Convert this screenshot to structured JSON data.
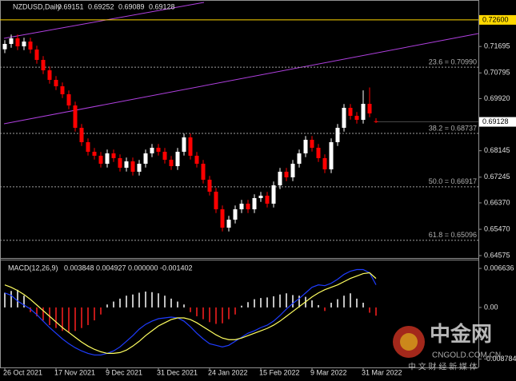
{
  "chart_data": {
    "type": "candlestick",
    "title": "NZDUSD,Daily",
    "categories": [
      "26 Oct 2021",
      null,
      null,
      null,
      null,
      null,
      null,
      null,
      "17 Nov 2021",
      null,
      null,
      null,
      null,
      null,
      null,
      null,
      "9 Dec 2021",
      null,
      null,
      null,
      null,
      null,
      null,
      null,
      "31 Dec 2021",
      null,
      null,
      null,
      null,
      null,
      null,
      null,
      "24 Jan 2022",
      null,
      null,
      null,
      null,
      null,
      null,
      null,
      "15 Feb 2022",
      null,
      null,
      null,
      null,
      null,
      null,
      null,
      "9 Mar 2022",
      null,
      null,
      null,
      null,
      null,
      null,
      null,
      "31 Mar 2022",
      null,
      null
    ],
    "open": [
      0.716,
      0.71782,
      0.71972,
      0.717,
      0.71863,
      0.71591,
      0.71238,
      0.70884,
      0.70558,
      0.7034,
      0.70068,
      0.69687,
      0.68926,
      0.68436,
      0.6811,
      0.67974,
      0.67702,
      0.68055,
      0.67892,
      0.67566,
      0.67783,
      0.6743,
      0.67702,
      0.68055,
      0.68246,
      0.6811,
      0.67838,
      0.6762,
      0.6811,
      0.68599,
      0.67974,
      0.67702,
      0.67158,
      0.6675,
      0.66151,
      0.65526,
      0.65798,
      0.66151,
      0.66342,
      0.66151,
      0.66532,
      0.66614,
      0.66342,
      0.66967,
      0.6743,
      0.67239,
      0.67702,
      0.68055,
      0.68518,
      0.68246,
      0.67892,
      0.67511,
      0.68436,
      0.68926,
      0.69606,
      0.69334,
      0.69198,
      0.69742,
      0.69151
    ],
    "high": [
      0.71912,
      0.72102,
      0.72102,
      0.71993,
      0.71993,
      0.71721,
      0.71368,
      0.71014,
      0.70688,
      0.7047,
      0.70198,
      0.69817,
      0.69056,
      0.68566,
      0.6824,
      0.68104,
      0.68185,
      0.68185,
      0.68022,
      0.67913,
      0.67913,
      0.67832,
      0.68185,
      0.68376,
      0.68376,
      0.6824,
      0.67968,
      0.6824,
      0.68729,
      0.68729,
      0.68104,
      0.67832,
      0.67288,
      0.6688,
      0.66281,
      0.65928,
      0.66281,
      0.66472,
      0.66472,
      0.66662,
      0.66744,
      0.66744,
      0.67097,
      0.6756,
      0.6756,
      0.67832,
      0.68185,
      0.68648,
      0.68648,
      0.68376,
      0.68022,
      0.68566,
      0.69056,
      0.69736,
      0.69736,
      0.69464,
      0.702,
      0.703,
      0.69252
    ],
    "low": [
      0.7147,
      0.71652,
      0.7157,
      0.7157,
      0.71461,
      0.71108,
      0.70754,
      0.70428,
      0.7021,
      0.69938,
      0.69557,
      0.68796,
      0.68306,
      0.6798,
      0.67844,
      0.67572,
      0.67572,
      0.67762,
      0.67436,
      0.67436,
      0.673,
      0.673,
      0.67572,
      0.67925,
      0.6798,
      0.67708,
      0.6749,
      0.6749,
      0.6798,
      0.67844,
      0.67572,
      0.67028,
      0.6662,
      0.66021,
      0.65396,
      0.65396,
      0.65668,
      0.66021,
      0.66021,
      0.66021,
      0.66402,
      0.66212,
      0.66212,
      0.66837,
      0.67109,
      0.67109,
      0.67572,
      0.67925,
      0.68116,
      0.67762,
      0.67381,
      0.67381,
      0.68306,
      0.68796,
      0.69204,
      0.69068,
      0.69068,
      0.69285,
      0.69089
    ],
    "close": [
      0.71782,
      0.71972,
      0.717,
      0.71863,
      0.71591,
      0.71238,
      0.70884,
      0.70558,
      0.7034,
      0.70068,
      0.69687,
      0.68926,
      0.68436,
      0.6811,
      0.67974,
      0.67702,
      0.68055,
      0.67892,
      0.67566,
      0.67783,
      0.6743,
      0.67702,
      0.68055,
      0.68246,
      0.6811,
      0.67838,
      0.6762,
      0.6811,
      0.68599,
      0.67974,
      0.67702,
      0.67158,
      0.6675,
      0.66151,
      0.65526,
      0.65798,
      0.66151,
      0.66342,
      0.66151,
      0.66532,
      0.66614,
      0.66342,
      0.66967,
      0.6743,
      0.67239,
      0.67702,
      0.68055,
      0.68518,
      0.68246,
      0.67892,
      0.67511,
      0.68436,
      0.68926,
      0.69606,
      0.69334,
      0.69198,
      0.69742,
      0.69415,
      0.69128
    ],
    "up_color": "#ffffff",
    "down_color": "#ff0000",
    "ylim": [
      0.6452,
      0.7306
    ],
    "yticks": [
      0.71695,
      0.70795,
      {
        "value": 0.6992,
        "label": "0.69920"
      },
      0.68145,
      0.67245,
      {
        "value": 0.6637,
        "label": "0.66370"
      },
      {
        "value": 0.6547,
        "label": "0.65470"
      },
      0.64575
    ],
    "hlines": [
      {
        "value": 0.726,
        "label": "0.72600",
        "color": "#ffd800"
      }
    ],
    "levels": [
      {
        "value": 0.7099,
        "label": "23.6 = 0.70990"
      },
      {
        "value": 0.68737,
        "label": "38.2 = 0.68737"
      },
      {
        "value": 0.66917,
        "label": "50.0 = 0.66917"
      },
      {
        "value": 0.65096,
        "label": "61.8 = 0.65096"
      }
    ],
    "macd": {
      "title": "MACD(12,26,9)",
      "extra_label": "0.000000",
      "ylim": [
        -0.0102,
        0.008
      ],
      "yticks": [
        0.006636,
        {
          "value": 0,
          "label": "0.00"
        },
        -0.008784
      ],
      "histogram": {
        "up_color": "#ffffff",
        "down_color": "#ff2020",
        "values": [
          0.0025,
          0.0028,
          0.003,
          0.002,
          -0.0008,
          -0.0015,
          -0.0022,
          -0.003,
          -0.0035,
          -0.004,
          -0.0042,
          -0.004,
          -0.0035,
          -0.003,
          -0.0022,
          -0.0012,
          0.0005,
          0.001,
          0.0015,
          0.002,
          0.0022,
          0.0025,
          0.0027,
          0.0026,
          0.0024,
          0.002,
          0.0015,
          0.001,
          0.0005,
          -0.0008,
          -0.0015,
          -0.002,
          -0.0025,
          -0.0028,
          -0.0027,
          -0.002,
          -0.0012,
          0.0003,
          0.0009,
          0.0014,
          0.0016,
          0.0017,
          0.0019,
          0.0022,
          0.0024,
          0.0021,
          0.002,
          0.0018,
          0.0012,
          0.0004,
          -0.0006,
          0.0008,
          0.0014,
          0.002,
          0.0024,
          0.0015,
          0.0008,
          -0.0009,
          -0.001402
        ]
      },
      "main": {
        "color": "#1e3cff",
        "values": [
          0.002466,
          0.002055,
          0.001096,
          0.000411,
          -0.000274,
          -0.001233,
          -0.002329,
          -0.003425,
          -0.004384,
          -0.005343,
          -0.006165,
          -0.00685,
          -0.007398,
          -0.007809,
          -0.008083,
          -0.008083,
          -0.007809,
          -0.007398,
          -0.006713,
          -0.005754,
          -0.004795,
          -0.003699,
          -0.002877,
          -0.002329,
          -0.001918,
          -0.001781,
          -0.001644,
          -0.001781,
          -0.002329,
          -0.003288,
          -0.004384,
          -0.005343,
          -0.006165,
          -0.006439,
          -0.006713,
          -0.006439,
          -0.005754,
          -0.005069,
          -0.004384,
          -0.003973,
          -0.003425,
          -0.003014,
          -0.002329,
          -0.00137,
          -0.000274,
          0.000685,
          0.001507,
          0.002466,
          0.003425,
          0.003836,
          0.003699,
          0.00411,
          0.004795,
          0.005617,
          0.006165,
          0.006439,
          0.006439,
          0.005891,
          0.003848
        ]
      },
      "signal": {
        "color": "#ffff60",
        "values": [
          0.003836,
          0.003425,
          0.002877,
          0.002192,
          0.00137,
          0.000411,
          -0.000548,
          -0.001507,
          -0.002466,
          -0.003425,
          -0.004247,
          -0.005069,
          -0.005891,
          -0.006576,
          -0.007124,
          -0.007535,
          -0.007809,
          -0.007809,
          -0.007672,
          -0.007261,
          -0.006576,
          -0.005754,
          -0.004795,
          -0.003973,
          -0.003151,
          -0.002603,
          -0.002055,
          -0.001781,
          -0.001781,
          -0.002055,
          -0.002603,
          -0.003288,
          -0.003973,
          -0.004658,
          -0.005206,
          -0.00548,
          -0.00548,
          -0.005206,
          -0.004795,
          -0.004384,
          -0.003973,
          -0.003562,
          -0.003014,
          -0.002329,
          -0.001507,
          -0.000685,
          0.000137,
          0.000959,
          0.001781,
          0.002466,
          0.003014,
          0.003425,
          0.003836,
          0.004384,
          0.004932,
          0.005343,
          0.005754,
          0.005891,
          0.004927
        ]
      }
    }
  },
  "watermark": {
    "brand": "中金网",
    "site": "CNGOLD.COM.CN",
    "tagline": "中 文 财 经 新 媒 体"
  }
}
